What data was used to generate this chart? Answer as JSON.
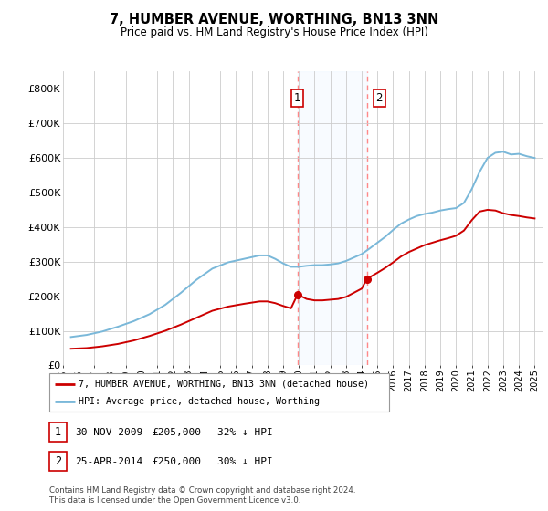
{
  "title": "7, HUMBER AVENUE, WORTHING, BN13 3NN",
  "subtitle": "Price paid vs. HM Land Registry's House Price Index (HPI)",
  "ylim": [
    0,
    850000
  ],
  "yticks": [
    0,
    100000,
    200000,
    300000,
    400000,
    500000,
    600000,
    700000,
    800000
  ],
  "ytick_labels": [
    "£0",
    "£100K",
    "£200K",
    "£300K",
    "£400K",
    "£500K",
    "£600K",
    "£700K",
    "£800K"
  ],
  "sale1_x": 2009.917,
  "sale1_price": 205000,
  "sale1_label": "30-NOV-2009",
  "sale1_text": "£205,000",
  "sale1_pct": "32% ↓ HPI",
  "sale2_x": 2014.32,
  "sale2_price": 250000,
  "sale2_label": "25-APR-2014",
  "sale2_text": "£250,000",
  "sale2_pct": "30% ↓ HPI",
  "hpi_color": "#7ab8d9",
  "price_color": "#cc0000",
  "vline_color": "#ff8888",
  "shade_color": "#ddeeff",
  "legend_label_price": "7, HUMBER AVENUE, WORTHING, BN13 3NN (detached house)",
  "legend_label_hpi": "HPI: Average price, detached house, Worthing",
  "footer1": "Contains HM Land Registry data © Crown copyright and database right 2024.",
  "footer2": "This data is licensed under the Open Government Licence v3.0.",
  "hpi_x": [
    1995.5,
    1996.5,
    1997.5,
    1998.5,
    1999.5,
    2000.5,
    2001.5,
    2002.5,
    2003.5,
    2004.5,
    2005.5,
    2006.5,
    2007.5,
    2008.0,
    2008.5,
    2009.0,
    2009.5,
    2010.0,
    2010.5,
    2011.0,
    2011.5,
    2012.0,
    2012.5,
    2013.0,
    2013.5,
    2014.0,
    2014.5,
    2015.0,
    2015.5,
    2016.0,
    2016.5,
    2017.0,
    2017.5,
    2018.0,
    2018.5,
    2019.0,
    2019.5,
    2020.0,
    2020.5,
    2021.0,
    2021.5,
    2022.0,
    2022.5,
    2023.0,
    2023.5,
    2024.0,
    2024.5,
    2025.0
  ],
  "hpi_y": [
    82000,
    88000,
    98000,
    112000,
    128000,
    148000,
    175000,
    210000,
    248000,
    280000,
    298000,
    308000,
    318000,
    318000,
    308000,
    295000,
    285000,
    285000,
    288000,
    290000,
    290000,
    292000,
    295000,
    302000,
    312000,
    322000,
    338000,
    355000,
    372000,
    392000,
    410000,
    422000,
    432000,
    438000,
    442000,
    448000,
    452000,
    455000,
    470000,
    510000,
    560000,
    600000,
    615000,
    618000,
    610000,
    612000,
    605000,
    600000
  ],
  "price_x": [
    1995.5,
    1996.5,
    1997.5,
    1998.5,
    1999.5,
    2000.5,
    2001.5,
    2002.5,
    2003.5,
    2004.5,
    2005.5,
    2006.5,
    2007.5,
    2008.0,
    2008.5,
    2009.0,
    2009.5,
    2009.917,
    2010.5,
    2011.0,
    2011.5,
    2012.0,
    2012.5,
    2013.0,
    2013.5,
    2014.0,
    2014.32,
    2015.0,
    2015.5,
    2016.0,
    2016.5,
    2017.0,
    2017.5,
    2018.0,
    2018.5,
    2019.0,
    2019.5,
    2020.0,
    2020.5,
    2021.0,
    2021.5,
    2022.0,
    2022.5,
    2023.0,
    2023.5,
    2024.0,
    2024.5,
    2025.0
  ],
  "price_y": [
    48000,
    50000,
    55000,
    62000,
    72000,
    85000,
    100000,
    118000,
    138000,
    158000,
    170000,
    178000,
    185000,
    185000,
    180000,
    172000,
    165000,
    205000,
    192000,
    188000,
    188000,
    190000,
    192000,
    198000,
    210000,
    222000,
    250000,
    268000,
    282000,
    298000,
    315000,
    328000,
    338000,
    348000,
    355000,
    362000,
    368000,
    375000,
    390000,
    420000,
    445000,
    450000,
    448000,
    440000,
    435000,
    432000,
    428000,
    425000
  ]
}
